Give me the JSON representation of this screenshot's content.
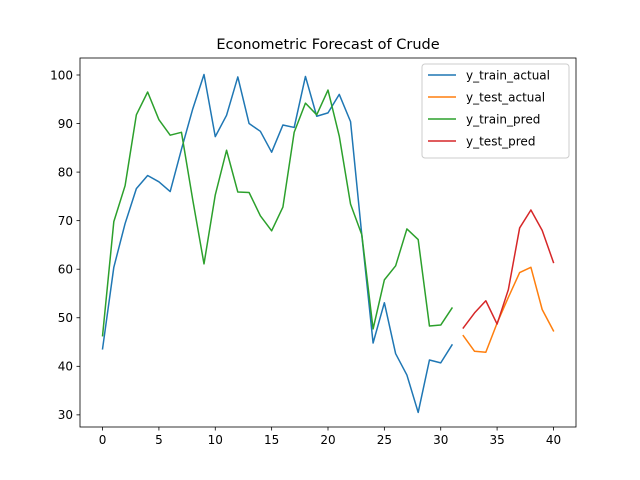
{
  "chart_data": {
    "type": "line",
    "title": "Econometric Forecast of Crude",
    "xlabel": "",
    "ylabel": "",
    "xlim": [
      -2,
      42
    ],
    "ylim": [
      27.5,
      103.5
    ],
    "xticks": [
      0,
      5,
      10,
      15,
      20,
      25,
      30,
      35,
      40
    ],
    "yticks": [
      30,
      40,
      50,
      60,
      70,
      80,
      90,
      100
    ],
    "grid": false,
    "legend_position": "top-right",
    "series": [
      {
        "name": "y_train_actual",
        "color": "#1f77b4",
        "x": [
          0,
          1,
          2,
          3,
          4,
          5,
          6,
          7,
          8,
          9,
          10,
          11,
          12,
          13,
          14,
          15,
          16,
          17,
          18,
          19,
          20,
          21,
          22,
          23,
          24,
          25,
          26,
          27,
          28,
          29,
          30,
          31
        ],
        "values": [
          43.6,
          60.4,
          69.4,
          76.6,
          79.3,
          78.0,
          76.0,
          84.7,
          93.0,
          100.1,
          87.3,
          91.7,
          99.6,
          90.0,
          88.4,
          84.1,
          89.7,
          89.2,
          99.7,
          91.5,
          92.2,
          96.0,
          90.4,
          67.0,
          44.8,
          53.1,
          42.6,
          38.2,
          30.5,
          41.3,
          40.7,
          44.4
        ]
      },
      {
        "name": "y_test_actual",
        "color": "#ff7f0e",
        "x": [
          32,
          33,
          34,
          35,
          36,
          37,
          38,
          39,
          40
        ],
        "values": [
          46.3,
          43.1,
          42.9,
          48.9,
          54.2,
          59.3,
          60.4,
          51.7,
          47.3
        ]
      },
      {
        "name": "y_train_pred",
        "color": "#2ca02c",
        "x": [
          0,
          1,
          2,
          3,
          4,
          5,
          6,
          7,
          8,
          9,
          10,
          11,
          12,
          13,
          14,
          15,
          16,
          17,
          18,
          19,
          20,
          21,
          22,
          23,
          24,
          25,
          26,
          27,
          28,
          29,
          30,
          31
        ],
        "values": [
          46.3,
          69.8,
          77.2,
          91.8,
          96.5,
          90.8,
          87.6,
          88.2,
          74.3,
          61.1,
          75.3,
          84.5,
          75.9,
          75.8,
          71.0,
          67.9,
          72.8,
          88.2,
          94.2,
          91.8,
          96.9,
          87.4,
          73.4,
          67.1,
          47.7,
          57.8,
          60.7,
          68.3,
          66.1,
          48.3,
          48.5,
          52.0
        ]
      },
      {
        "name": "y_test_pred",
        "color": "#d62728",
        "x": [
          32,
          33,
          34,
          35,
          36,
          37,
          38,
          39,
          40
        ],
        "values": [
          47.9,
          51.0,
          53.5,
          48.7,
          55.8,
          68.5,
          72.2,
          68.0,
          61.4
        ]
      }
    ]
  }
}
